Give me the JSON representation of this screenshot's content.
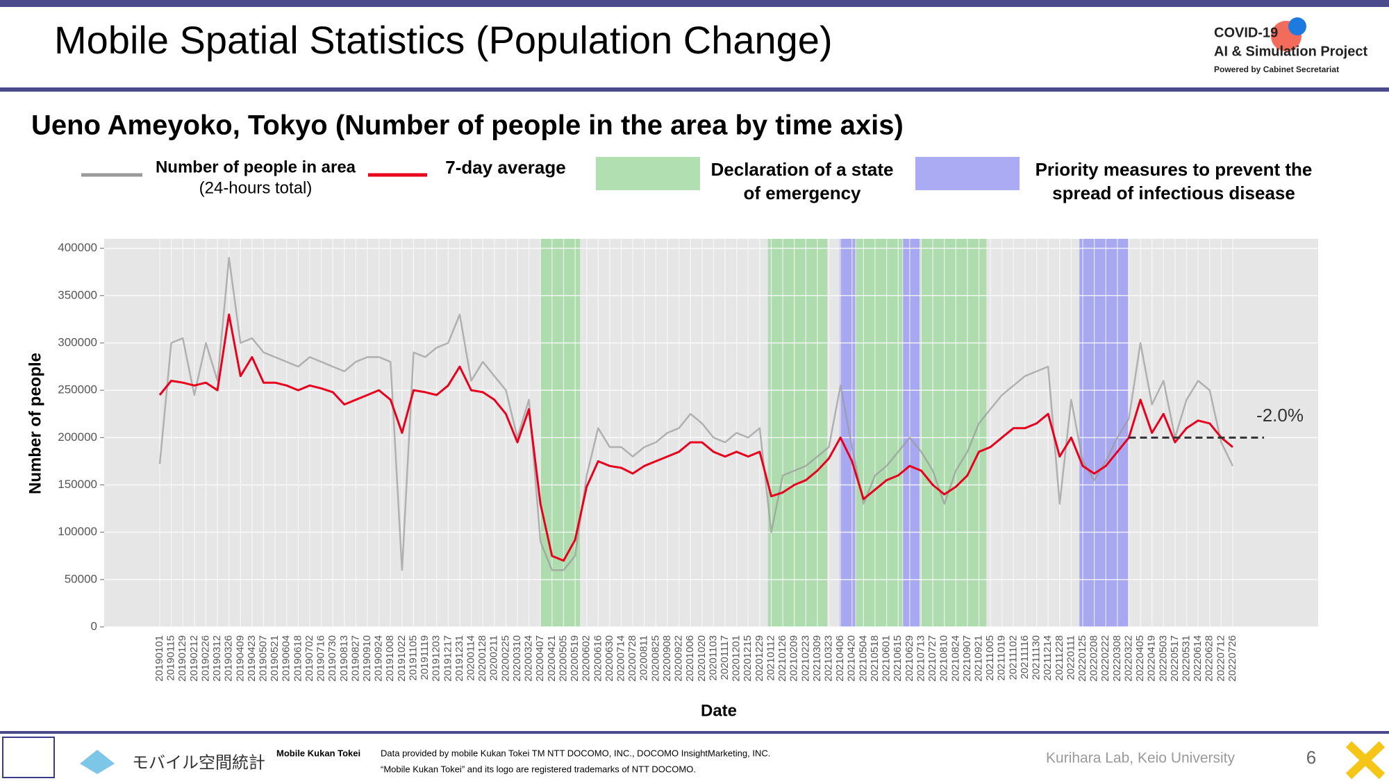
{
  "header": {
    "title": "Mobile Spatial Statistics (Population Change)",
    "logo": {
      "line1": "COVID-19",
      "line2": "AI & Simulation Project",
      "line3": "Powered by Cabinet Secretariat"
    }
  },
  "chart_data": {
    "type": "line",
    "title": "Ueno Ameyoko, Tokyo (Number of people in the area by time axis)",
    "xlabel": "Date",
    "ylabel": "Number of people",
    "categories": [
      "20190101",
      "20190115",
      "20190129",
      "20190212",
      "20190226",
      "20190312",
      "20190326",
      "20190409",
      "20190423",
      "20190507",
      "20190521",
      "20190604",
      "20190618",
      "20190702",
      "20190716",
      "20190730",
      "20190813",
      "20190827",
      "20190910",
      "20190924",
      "20191008",
      "20191022",
      "20191105",
      "20191119",
      "20191203",
      "20191217",
      "20191231",
      "20200114",
      "20200128",
      "20200211",
      "20200225",
      "20200310",
      "20200324",
      "20200407",
      "20200421",
      "20200505",
      "20200519",
      "20200602",
      "20200616",
      "20200630",
      "20200714",
      "20200728",
      "20200811",
      "20200825",
      "20200908",
      "20200922",
      "20201006",
      "20201020",
      "20201103",
      "20201117",
      "20201201",
      "20201215",
      "20201229",
      "20210112",
      "20210126",
      "20210209",
      "20210223",
      "20210309",
      "20210323",
      "20210406",
      "20210420",
      "20210504",
      "20210518",
      "20210601",
      "20210615",
      "20210629",
      "20210713",
      "20210727",
      "20210810",
      "20210824",
      "20210907",
      "20210921",
      "20211005",
      "20211019",
      "20211102",
      "20211116",
      "20211130",
      "20211214",
      "20211228",
      "20220111",
      "20220125",
      "20220208",
      "20220222",
      "20220308",
      "20220322",
      "20220405",
      "20220419",
      "20220503",
      "20220517",
      "20220531",
      "20220614",
      "20220628",
      "20220712",
      "20220726"
    ],
    "series": [
      {
        "name": "Number of people in area",
        "name2": "(24-hours total)",
        "color": "#999999",
        "values": [
          172000,
          300000,
          305000,
          245000,
          300000,
          260000,
          390000,
          300000,
          305000,
          290000,
          285000,
          280000,
          275000,
          285000,
          280000,
          275000,
          270000,
          280000,
          285000,
          285000,
          280000,
          60000,
          290000,
          285000,
          295000,
          300000,
          330000,
          260000,
          280000,
          265000,
          250000,
          200000,
          240000,
          90000,
          60000,
          60000,
          75000,
          160000,
          210000,
          190000,
          190000,
          180000,
          190000,
          195000,
          205000,
          210000,
          225000,
          215000,
          200000,
          195000,
          205000,
          200000,
          210000,
          100000,
          160000,
          165000,
          170000,
          180000,
          190000,
          255000,
          190000,
          130000,
          160000,
          170000,
          185000,
          200000,
          185000,
          165000,
          130000,
          165000,
          185000,
          215000,
          230000,
          245000,
          255000,
          265000,
          270000,
          275000,
          130000,
          240000,
          175000,
          155000,
          175000,
          200000,
          220000,
          300000,
          235000,
          260000,
          200000,
          240000,
          260000,
          250000,
          195000,
          170000
        ]
      },
      {
        "name": "7-day average",
        "color": "#e8001c",
        "values": [
          245000,
          260000,
          258000,
          255000,
          258000,
          250000,
          330000,
          265000,
          285000,
          258000,
          258000,
          255000,
          250000,
          255000,
          252000,
          248000,
          235000,
          240000,
          245000,
          250000,
          240000,
          205000,
          250000,
          248000,
          245000,
          255000,
          275000,
          250000,
          248000,
          240000,
          225000,
          195000,
          230000,
          130000,
          75000,
          70000,
          92000,
          148000,
          175000,
          170000,
          168000,
          162000,
          170000,
          175000,
          180000,
          185000,
          195000,
          195000,
          185000,
          180000,
          185000,
          180000,
          185000,
          138000,
          142000,
          150000,
          155000,
          165000,
          178000,
          200000,
          175000,
          135000,
          145000,
          155000,
          160000,
          170000,
          165000,
          150000,
          140000,
          148000,
          160000,
          185000,
          190000,
          200000,
          210000,
          210000,
          215000,
          225000,
          180000,
          200000,
          170000,
          162000,
          170000,
          185000,
          200000,
          240000,
          205000,
          225000,
          195000,
          210000,
          218000,
          215000,
          200000,
          190000
        ]
      }
    ],
    "spans": [
      {
        "name": "Declaration of a state",
        "name2": "of emergency",
        "color": "#a3d9a5",
        "periods": [
          [
            "20200407",
            "20200525"
          ],
          [
            "20210108",
            "20210321"
          ],
          [
            "20210425",
            "20210620"
          ],
          [
            "20210712",
            "20210930"
          ]
        ]
      },
      {
        "name": "Priority measures to prevent the",
        "name2": "spread of infectious disease",
        "color": "#9c9cf2",
        "periods": [
          [
            "20210405",
            "20210424"
          ],
          [
            "20210621",
            "20210711"
          ],
          [
            "20220121",
            "20220321"
          ]
        ]
      }
    ],
    "reference": {
      "value": 200000,
      "start": "20220322",
      "label": "-2.0%"
    },
    "ylim": [
      0,
      410000
    ],
    "yticks": [
      0,
      50000,
      100000,
      150000,
      200000,
      250000,
      300000,
      350000,
      400000
    ],
    "grid": true
  },
  "footer": {
    "brand": "モバイル空間統計",
    "brand_en": "Mobile Kukan Tokei",
    "credit1": "Data provided by mobile Kukan Tokei TM NTT DOCOMO, INC., DOCOMO InsightMarketing, INC.",
    "credit2": "“Mobile Kukan Tokei” and its logo are registered trademarks of NTT DOCOMO.",
    "lab": "Kurihara Lab, Keio University",
    "page": "6"
  }
}
